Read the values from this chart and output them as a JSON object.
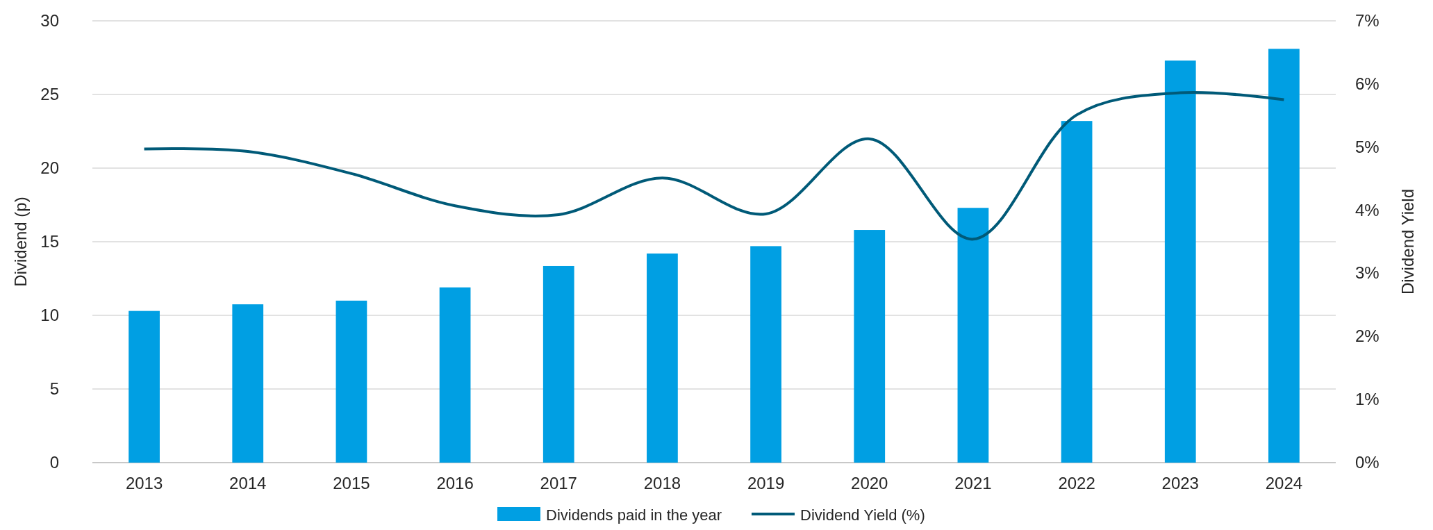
{
  "chart_data": {
    "type": "bar",
    "categories": [
      "2013",
      "2014",
      "2015",
      "2016",
      "2017",
      "2018",
      "2019",
      "2020",
      "2021",
      "2022",
      "2023",
      "2024"
    ],
    "series": [
      {
        "name": "Dividends paid in the year",
        "color": "#009fe3",
        "values": [
          10.3,
          10.75,
          11.0,
          11.9,
          13.35,
          14.2,
          14.7,
          15.8,
          17.3,
          23.2,
          27.3,
          28.1
        ]
      },
      {
        "name": "Dividend Yield (%)",
        "type": "line",
        "axis": "y2",
        "color": "#005a78",
        "values": [
          4.97,
          4.93,
          4.58,
          4.07,
          3.93,
          4.51,
          3.94,
          5.13,
          3.54,
          5.51,
          5.86,
          5.75
        ]
      }
    ],
    "ylabel": "Dividend (p)",
    "y2label": "Dividend Yield",
    "ylim": [
      0,
      30
    ],
    "yticks": [
      0,
      5,
      10,
      15,
      20,
      25,
      30
    ],
    "y2lim": [
      0,
      7
    ],
    "y2ticks": [
      {
        "value": 0,
        "label": "0%"
      },
      {
        "value": 1,
        "label": "1%"
      },
      {
        "value": 2,
        "label": "2%"
      },
      {
        "value": 3,
        "label": "3%"
      },
      {
        "value": 4,
        "label": "4%"
      },
      {
        "value": 5,
        "label": "5%"
      },
      {
        "value": 6,
        "label": "6%"
      },
      {
        "value": 7,
        "label": "7%"
      }
    ],
    "grid": "y",
    "legend": "bottom",
    "marker": "none",
    "line_style": "solid"
  }
}
